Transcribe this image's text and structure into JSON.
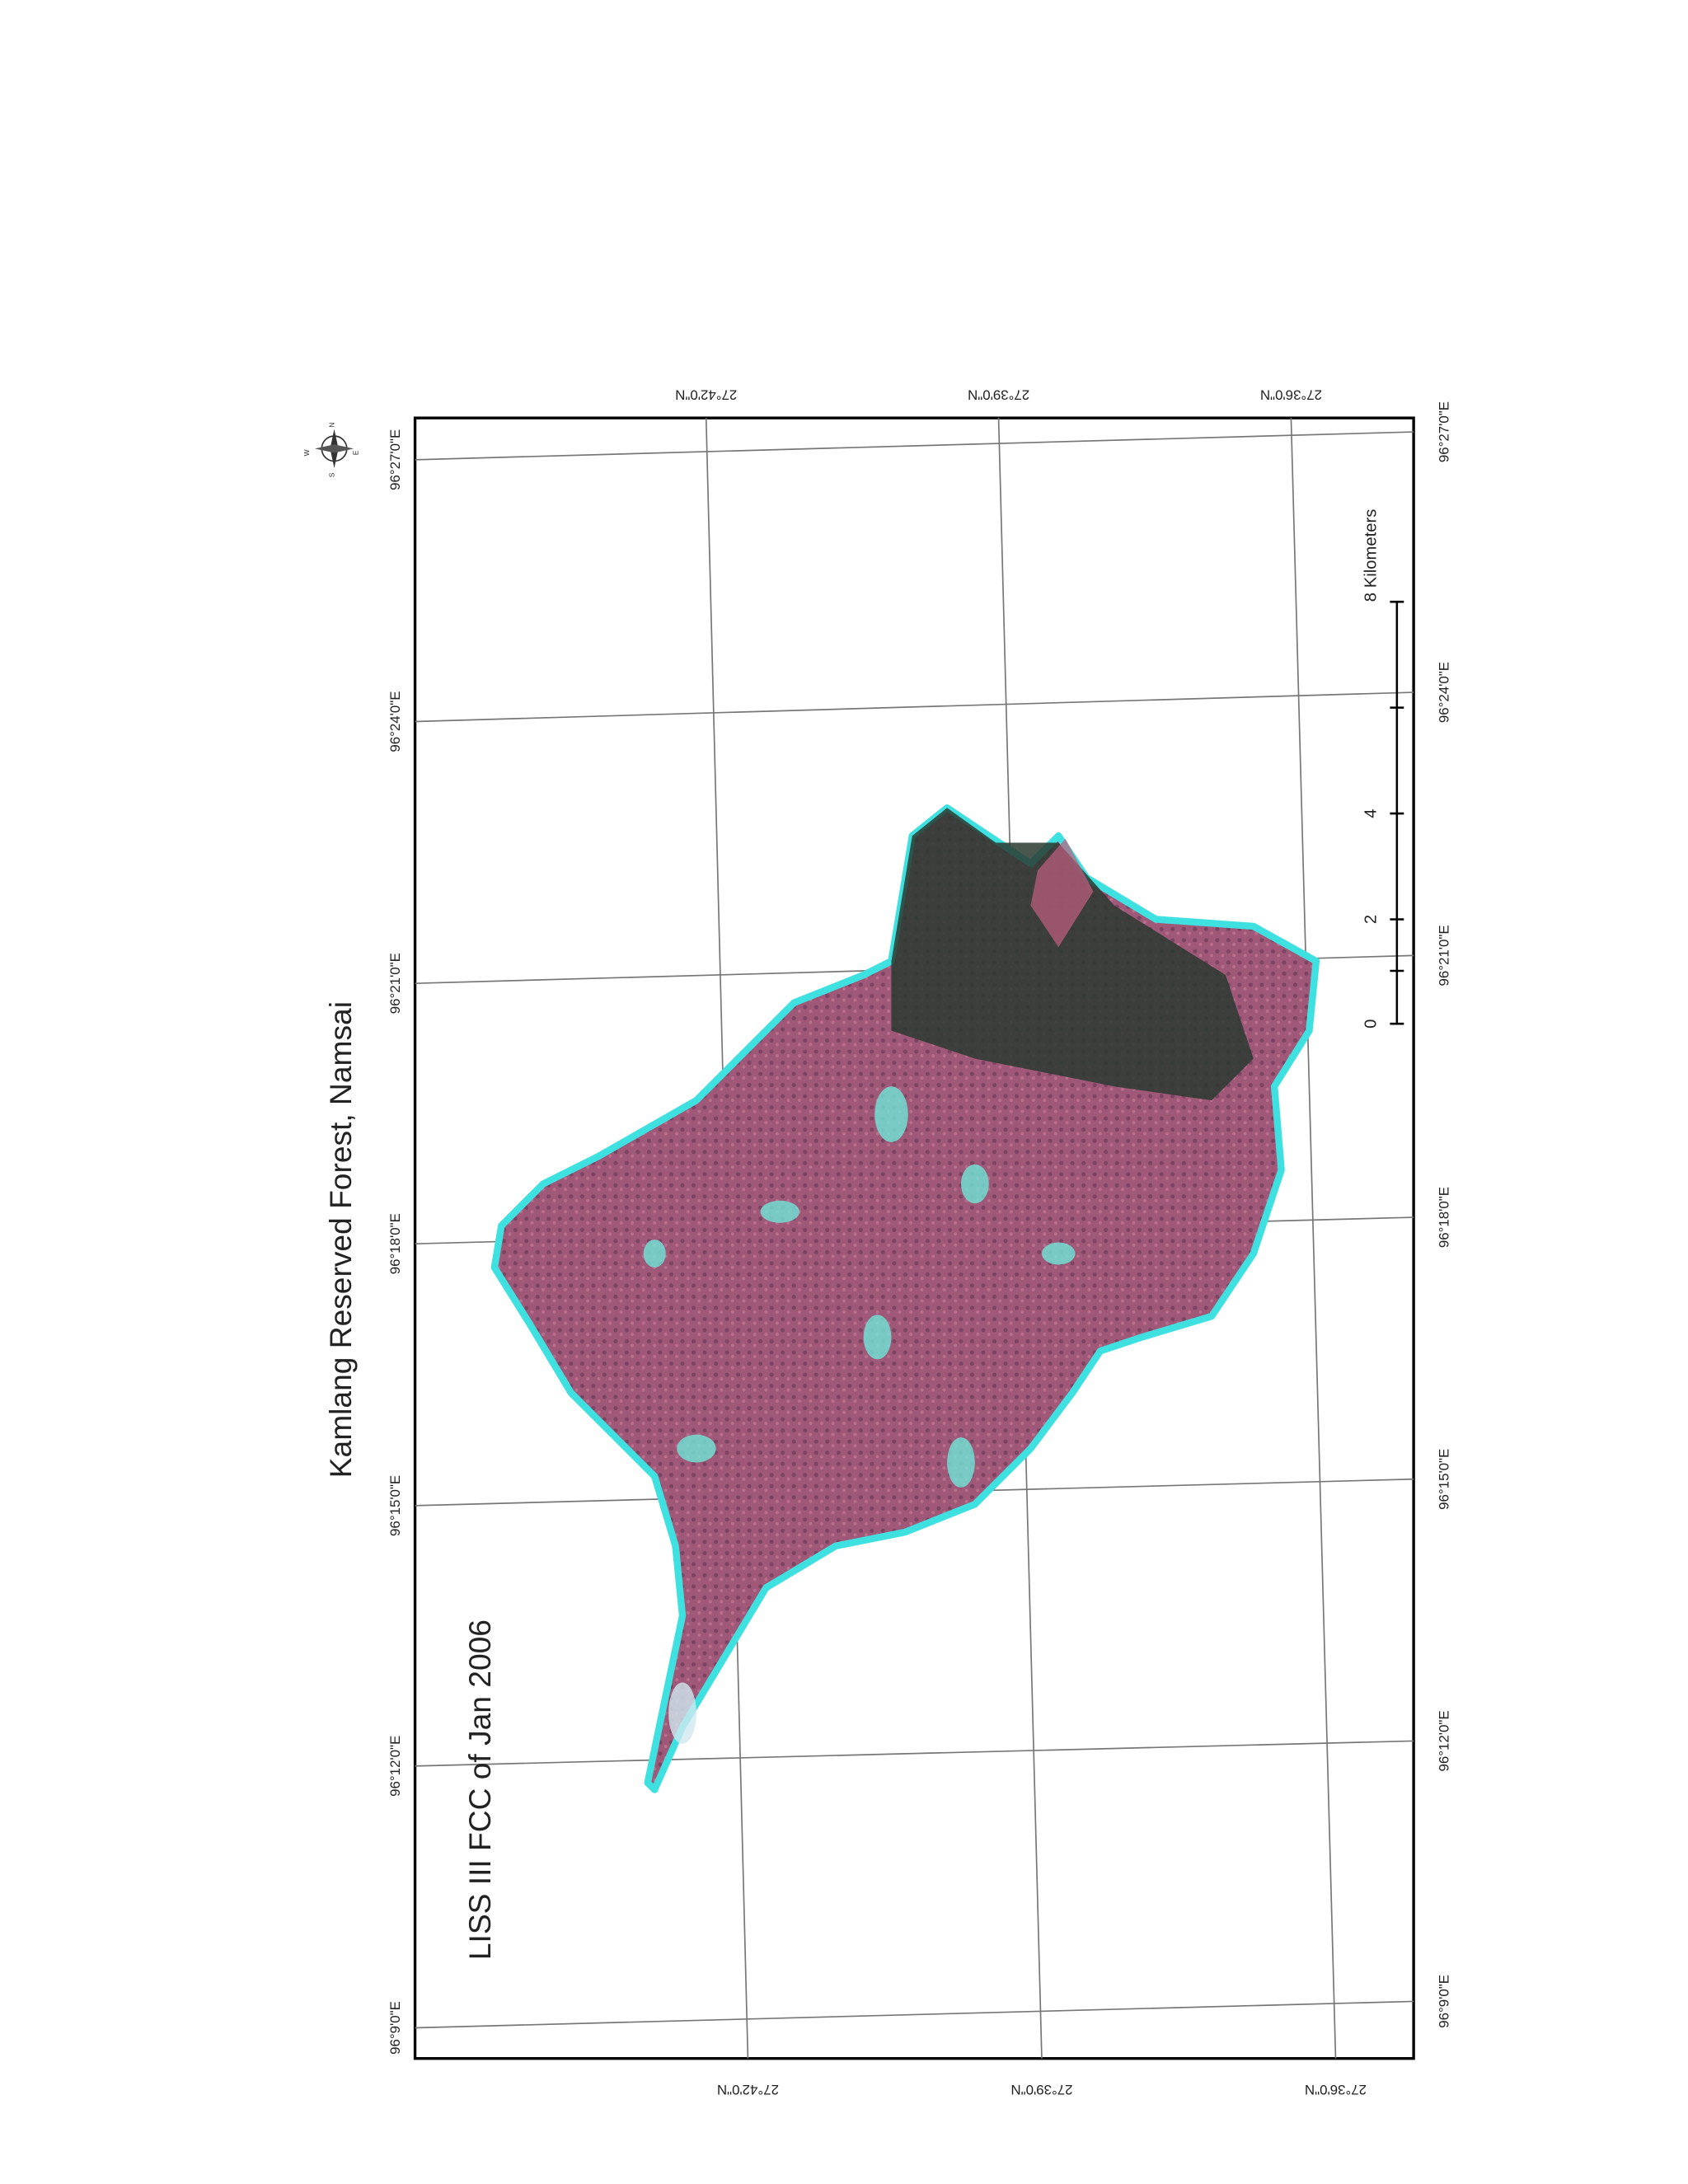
{
  "title": "Kamlang Reserved Forest, Namsai",
  "subtitle": "LISS III FCC of Jan 2006",
  "left_labels": [
    "96°27'0\"E",
    "96°24'0\"E",
    "96°21'0\"E",
    "96°18'0\"E",
    "96°15'0\"E",
    "96°12'0\"E",
    "96°9'0\"E"
  ],
  "right_labels": [
    "96°27'0\"E",
    "96°24'0\"E",
    "96°21'0\"E",
    "96°18'0\"E",
    "96°15'0\"E",
    "96°12'0\"E",
    "96°9'0\"E"
  ],
  "top_labels": [
    "27°42'0\"N",
    "27°39'0\"N",
    "27°36'0\"N"
  ],
  "bottom_labels": [
    "27°42'0\"N",
    "27°39'0\"N",
    "27°36'0\"N"
  ],
  "scale_bar": {
    "labels": [
      "0",
      "2",
      "4",
      "8 Kilometers"
    ]
  },
  "compass": {
    "labels": [
      "N",
      "E",
      "S",
      "W"
    ]
  }
}
